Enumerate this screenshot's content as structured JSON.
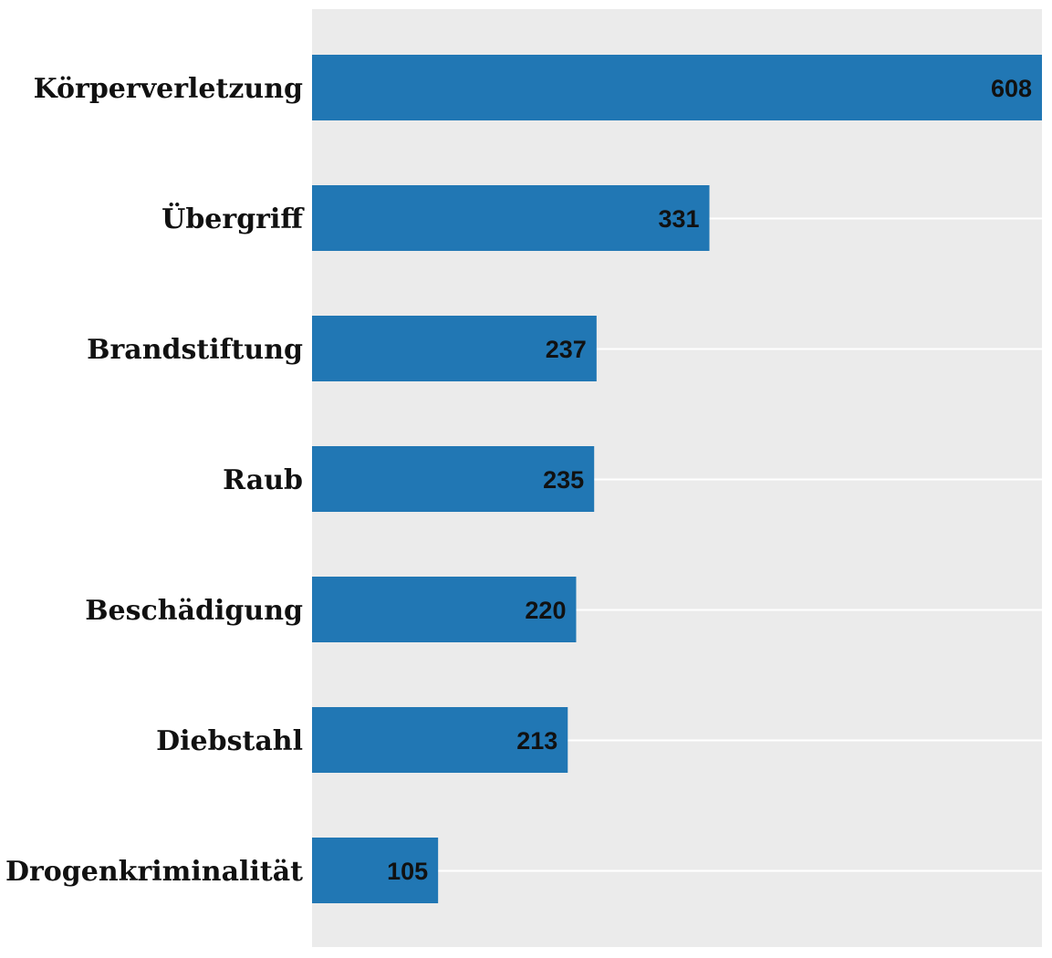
{
  "chart_data": {
    "type": "bar",
    "orientation": "horizontal",
    "categories": [
      "Körperverletzung",
      "Übergriff",
      "Brandstiftung",
      "Raub",
      "Beschädigung",
      "Diebstahl",
      "Drogenkriminalität"
    ],
    "values": [
      608,
      331,
      237,
      235,
      220,
      213,
      105
    ],
    "xlim": [
      0,
      608
    ],
    "grid": true,
    "bar_color": "#2177b4",
    "panel_color": "#ebebeb",
    "grid_color": "#ffffff",
    "data_labels_inside_bar_end": true
  }
}
